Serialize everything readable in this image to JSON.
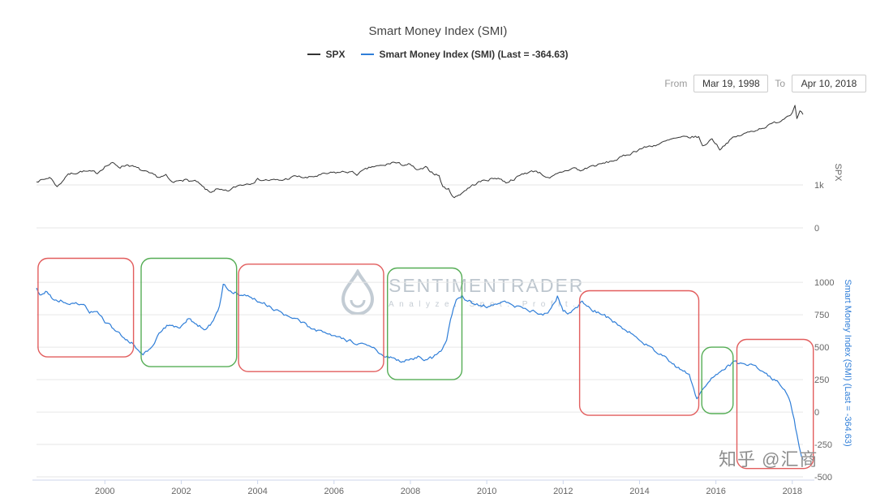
{
  "title": "Smart Money Index (SMI)",
  "legend": [
    {
      "label": "SPX",
      "color": "#333333"
    },
    {
      "label": "Smart Money Index (SMI) (Last = -364.63)",
      "color": "#2f7ed8"
    }
  ],
  "range_controls": {
    "from_label": "From",
    "from_value": "Mar 19, 1998",
    "to_label": "To",
    "to_value": "Apr 10, 2018"
  },
  "watermark": {
    "brand": "SENTIMENTRADER",
    "tagline": "Analyze. Spot. Profit."
  },
  "footer_watermark": "知乎 @汇商",
  "chart_data": {
    "type": "line",
    "title": "Smart Money Index (SMI)",
    "x_range": [
      1998.21,
      2018.28
    ],
    "x_ticks": [
      2000,
      2002,
      2004,
      2006,
      2008,
      2010,
      2012,
      2014,
      2016,
      2018
    ],
    "grid": true,
    "legend_position": "top-center",
    "panels": [
      {
        "name": "SPX",
        "axis_title": "SPX",
        "y_range": [
          -358,
          2944
        ],
        "y_ticks": [
          {
            "value": 0,
            "label": "0"
          },
          {
            "value": 1000,
            "label": "1k"
          }
        ],
        "series": {
          "name": "SPX",
          "color": "#333333",
          "points": [
            [
              1998.21,
              1100
            ],
            [
              1998.4,
              1120
            ],
            [
              1998.55,
              1180
            ],
            [
              1998.65,
              1090
            ],
            [
              1998.75,
              960
            ],
            [
              1998.85,
              1050
            ],
            [
              1999.0,
              1230
            ],
            [
              1999.2,
              1280
            ],
            [
              1999.4,
              1320
            ],
            [
              1999.6,
              1300
            ],
            [
              1999.8,
              1280
            ],
            [
              2000.0,
              1440
            ],
            [
              2000.2,
              1500
            ],
            [
              2000.4,
              1420
            ],
            [
              2000.6,
              1480
            ],
            [
              2000.8,
              1400
            ],
            [
              2001.0,
              1320
            ],
            [
              2001.2,
              1240
            ],
            [
              2001.4,
              1180
            ],
            [
              2001.6,
              1210
            ],
            [
              2001.7,
              1090
            ],
            [
              2001.8,
              1040
            ],
            [
              2002.0,
              1140
            ],
            [
              2002.2,
              1100
            ],
            [
              2002.4,
              1070
            ],
            [
              2002.55,
              950
            ],
            [
              2002.75,
              820
            ],
            [
              2002.9,
              900
            ],
            [
              2003.05,
              860
            ],
            [
              2003.2,
              840
            ],
            [
              2003.5,
              990
            ],
            [
              2003.8,
              1050
            ],
            [
              2004.0,
              1130
            ],
            [
              2004.3,
              1110
            ],
            [
              2004.6,
              1100
            ],
            [
              2005.0,
              1200
            ],
            [
              2005.3,
              1160
            ],
            [
              2005.6,
              1220
            ],
            [
              2006.0,
              1280
            ],
            [
              2006.4,
              1310
            ],
            [
              2006.6,
              1250
            ],
            [
              2007.0,
              1420
            ],
            [
              2007.3,
              1440
            ],
            [
              2007.55,
              1530
            ],
            [
              2007.75,
              1470
            ],
            [
              2007.95,
              1480
            ],
            [
              2008.2,
              1330
            ],
            [
              2008.4,
              1390
            ],
            [
              2008.6,
              1280
            ],
            [
              2008.75,
              1220
            ],
            [
              2008.85,
              950
            ],
            [
              2009.0,
              900
            ],
            [
              2009.15,
              700
            ],
            [
              2009.3,
              790
            ],
            [
              2009.5,
              920
            ],
            [
              2009.75,
              1050
            ],
            [
              2010.0,
              1120
            ],
            [
              2010.3,
              1170
            ],
            [
              2010.5,
              1060
            ],
            [
              2010.8,
              1180
            ],
            [
              2011.0,
              1280
            ],
            [
              2011.3,
              1330
            ],
            [
              2011.55,
              1200
            ],
            [
              2011.65,
              1140
            ],
            [
              2011.8,
              1220
            ],
            [
              2012.0,
              1310
            ],
            [
              2012.3,
              1400
            ],
            [
              2012.45,
              1320
            ],
            [
              2012.7,
              1430
            ],
            [
              2013.0,
              1480
            ],
            [
              2013.4,
              1590
            ],
            [
              2013.8,
              1750
            ],
            [
              2014.0,
              1840
            ],
            [
              2014.5,
              1950
            ],
            [
              2014.9,
              2070
            ],
            [
              2015.2,
              2100
            ],
            [
              2015.55,
              2120
            ],
            [
              2015.65,
              1890
            ],
            [
              2015.9,
              2080
            ],
            [
              2016.1,
              1840
            ],
            [
              2016.4,
              2070
            ],
            [
              2016.7,
              2170
            ],
            [
              2017.0,
              2270
            ],
            [
              2017.4,
              2390
            ],
            [
              2017.7,
              2500
            ],
            [
              2018.0,
              2700
            ],
            [
              2018.07,
              2870
            ],
            [
              2018.12,
              2580
            ],
            [
              2018.2,
              2720
            ],
            [
              2018.28,
              2640
            ]
          ]
        }
      },
      {
        "name": "SMI",
        "axis_title": "Smart Money Index (SMI) (Last = -364.63)",
        "y_range": [
          -481,
          1238
        ],
        "y_ticks": [
          {
            "value": 1000,
            "label": "1000"
          },
          {
            "value": 750,
            "label": "750"
          },
          {
            "value": 500,
            "label": "500"
          },
          {
            "value": 250,
            "label": "250"
          },
          {
            "value": 0,
            "label": "0"
          },
          {
            "value": -250,
            "label": "-250"
          },
          {
            "value": -500,
            "label": "-500"
          }
        ],
        "series": {
          "name": "Smart Money Index (SMI)",
          "last_value": -364.63,
          "color": "#2f7ed8",
          "points": [
            [
              1998.21,
              950
            ],
            [
              1998.3,
              900
            ],
            [
              1998.45,
              930
            ],
            [
              1998.6,
              880
            ],
            [
              1998.8,
              860
            ],
            [
              1999.0,
              850
            ],
            [
              1999.2,
              820
            ],
            [
              1999.45,
              840
            ],
            [
              1999.6,
              780
            ],
            [
              1999.8,
              760
            ],
            [
              2000.0,
              700
            ],
            [
              2000.15,
              680
            ],
            [
              2000.3,
              620
            ],
            [
              2000.5,
              560
            ],
            [
              2000.7,
              540
            ],
            [
              2000.85,
              470
            ],
            [
              2001.0,
              430
            ],
            [
              2001.15,
              480
            ],
            [
              2001.3,
              540
            ],
            [
              2001.5,
              630
            ],
            [
              2001.7,
              680
            ],
            [
              2001.85,
              650
            ],
            [
              2002.0,
              660
            ],
            [
              2002.2,
              720
            ],
            [
              2002.4,
              680
            ],
            [
              2002.6,
              640
            ],
            [
              2002.8,
              690
            ],
            [
              2003.0,
              820
            ],
            [
              2003.1,
              980
            ],
            [
              2003.25,
              940
            ],
            [
              2003.45,
              920
            ],
            [
              2003.7,
              890
            ],
            [
              2004.0,
              860
            ],
            [
              2004.3,
              820
            ],
            [
              2004.6,
              760
            ],
            [
              2005.0,
              710
            ],
            [
              2005.4,
              650
            ],
            [
              2005.8,
              600
            ],
            [
              2006.2,
              560
            ],
            [
              2006.6,
              530
            ],
            [
              2007.0,
              490
            ],
            [
              2007.2,
              460
            ],
            [
              2007.4,
              430
            ],
            [
              2007.6,
              400
            ],
            [
              2007.8,
              390
            ],
            [
              2008.0,
              410
            ],
            [
              2008.2,
              430
            ],
            [
              2008.4,
              400
            ],
            [
              2008.6,
              420
            ],
            [
              2008.8,
              460
            ],
            [
              2008.95,
              560
            ],
            [
              2009.05,
              700
            ],
            [
              2009.2,
              870
            ],
            [
              2009.35,
              900
            ],
            [
              2009.5,
              860
            ],
            [
              2009.7,
              830
            ],
            [
              2010.0,
              820
            ],
            [
              2010.3,
              850
            ],
            [
              2010.6,
              830
            ],
            [
              2011.0,
              790
            ],
            [
              2011.3,
              770
            ],
            [
              2011.6,
              750
            ],
            [
              2011.85,
              890
            ],
            [
              2012.0,
              790
            ],
            [
              2012.2,
              760
            ],
            [
              2012.5,
              850
            ],
            [
              2012.7,
              800
            ],
            [
              2013.0,
              760
            ],
            [
              2013.3,
              700
            ],
            [
              2013.6,
              640
            ],
            [
              2014.0,
              560
            ],
            [
              2014.3,
              500
            ],
            [
              2014.6,
              430
            ],
            [
              2014.9,
              360
            ],
            [
              2015.1,
              320
            ],
            [
              2015.3,
              290
            ],
            [
              2015.5,
              100
            ],
            [
              2015.65,
              180
            ],
            [
              2015.8,
              230
            ],
            [
              2016.0,
              300
            ],
            [
              2016.2,
              340
            ],
            [
              2016.45,
              380
            ],
            [
              2016.6,
              370
            ],
            [
              2016.8,
              360
            ],
            [
              2017.0,
              350
            ],
            [
              2017.2,
              310
            ],
            [
              2017.45,
              270
            ],
            [
              2017.6,
              240
            ],
            [
              2017.8,
              160
            ],
            [
              2017.95,
              60
            ],
            [
              2018.05,
              -60
            ],
            [
              2018.12,
              -180
            ],
            [
              2018.18,
              -280
            ],
            [
              2018.24,
              -350
            ],
            [
              2018.28,
              -364.63
            ]
          ]
        }
      }
    ],
    "annotations": [
      {
        "shape": "rounded-rect",
        "color": "#e25d5d",
        "x1": 1998.25,
        "x2": 2000.75,
        "y1": 425,
        "y2": 1185
      },
      {
        "shape": "rounded-rect",
        "color": "#55ad55",
        "x1": 2000.95,
        "x2": 2003.45,
        "y1": 350,
        "y2": 1185
      },
      {
        "shape": "rounded-rect",
        "color": "#e25d5d",
        "x1": 2003.5,
        "x2": 2007.3,
        "y1": 312,
        "y2": 1140
      },
      {
        "shape": "rounded-rect",
        "color": "#55ad55",
        "x1": 2007.4,
        "x2": 2009.35,
        "y1": 250,
        "y2": 1110
      },
      {
        "shape": "rounded-rect",
        "color": "#e25d5d",
        "x1": 2012.43,
        "x2": 2015.55,
        "y1": -25,
        "y2": 935
      },
      {
        "shape": "rounded-rect",
        "color": "#55ad55",
        "x1": 2015.63,
        "x2": 2016.45,
        "y1": -12,
        "y2": 500
      },
      {
        "shape": "rounded-rect",
        "color": "#e25d5d",
        "x1": 2016.55,
        "x2": 2018.55,
        "y1": -435,
        "y2": 560
      }
    ]
  }
}
